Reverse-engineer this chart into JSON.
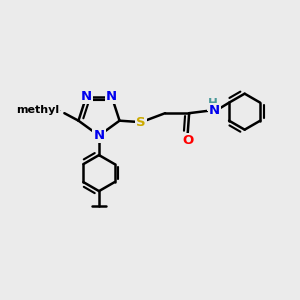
{
  "bg_color": "#ebebeb",
  "atom_colors": {
    "N": "#0000ee",
    "S": "#ccaa00",
    "O": "#ff0000",
    "H": "#4a9999",
    "C": "#000000"
  },
  "bond_color": "#000000",
  "bond_lw": 1.8,
  "figsize": [
    3.0,
    3.0
  ],
  "dpi": 100,
  "xlim": [
    0.0,
    10.0
  ],
  "ylim": [
    0.0,
    10.0
  ]
}
